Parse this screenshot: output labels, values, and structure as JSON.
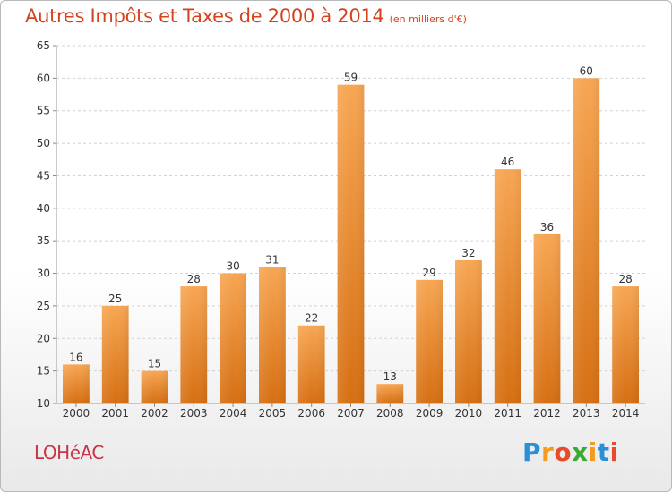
{
  "header": {
    "title": "Autres Impôts et Taxes de 2000 à 2014",
    "subtitle": "(en milliers d'€)"
  },
  "footer": {
    "commune": "LOHéAC",
    "brand_letters": [
      {
        "ch": "P",
        "color": "#2b8fd6"
      },
      {
        "ch": "r",
        "color": "#f39b1e"
      },
      {
        "ch": "o",
        "color": "#e84b2c"
      },
      {
        "ch": "x",
        "color": "#3aaa35"
      },
      {
        "ch": "i",
        "color": "#f39b1e"
      },
      {
        "ch": "t",
        "color": "#2b8fd6"
      },
      {
        "ch": "i",
        "color": "#e84b2c"
      }
    ]
  },
  "chart_data": {
    "type": "bar",
    "title": "Autres Impôts et Taxes de 2000 à 2014",
    "subtitle": "(en milliers d'€)",
    "xlabel": "",
    "ylabel": "",
    "categories": [
      "2000",
      "2001",
      "2002",
      "2003",
      "2004",
      "2005",
      "2006",
      "2007",
      "2008",
      "2009",
      "2010",
      "2011",
      "2012",
      "2013",
      "2014"
    ],
    "values": [
      16,
      25,
      15,
      28,
      30,
      31,
      22,
      59,
      13,
      29,
      32,
      46,
      36,
      60,
      28
    ],
    "ylim": [
      10,
      65
    ],
    "yticks": [
      10,
      15,
      20,
      25,
      30,
      35,
      40,
      45,
      50,
      55,
      60,
      65
    ],
    "grid": true,
    "bar_color_top": "#f7a653",
    "bar_color_bottom": "#d66f12"
  }
}
